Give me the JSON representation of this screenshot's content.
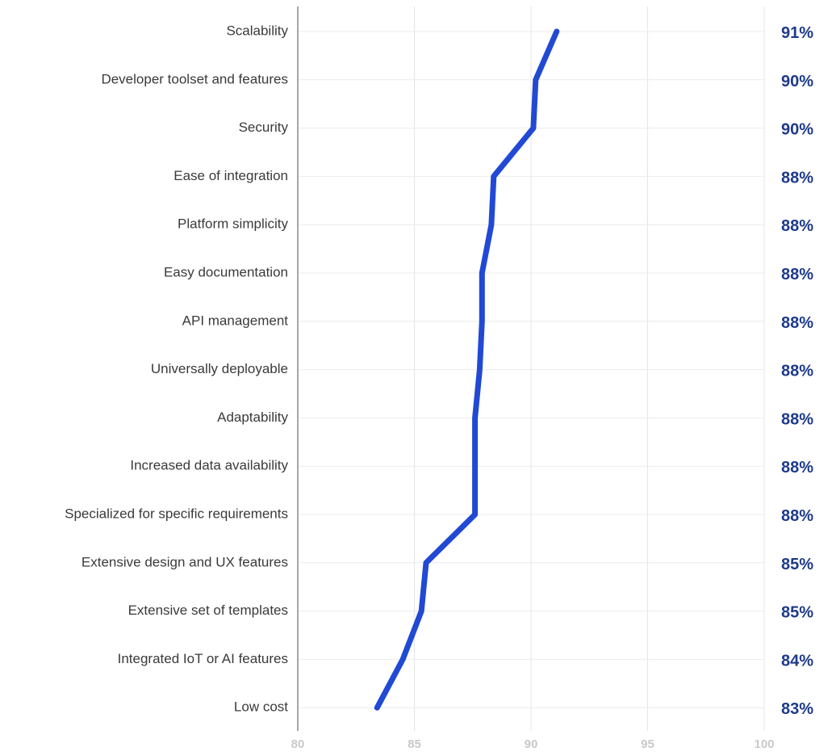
{
  "chart_data": {
    "type": "line",
    "orientation": "horizontal",
    "categories": [
      "Scalability",
      "Developer toolset and features",
      "Security",
      "Ease of integration",
      "Platform simplicity",
      "Easy documentation",
      "API management",
      "Universally deployable",
      "Adaptability",
      "Increased data availability",
      "Specialized for specific requirements",
      "Extensive design and UX features",
      "Extensive set of templates",
      "Integrated IoT or AI features",
      "Low cost"
    ],
    "values": [
      91.1,
      90.2,
      90.1,
      88.4,
      88.3,
      87.9,
      87.9,
      87.8,
      87.6,
      87.6,
      87.6,
      85.5,
      85.3,
      84.5,
      83.4
    ],
    "value_labels": [
      "91%",
      "90%",
      "90%",
      "88%",
      "88%",
      "88%",
      "88%",
      "88%",
      "88%",
      "88%",
      "88%",
      "85%",
      "85%",
      "84%",
      "83%"
    ],
    "x_ticks": [
      "80",
      "85",
      "90",
      "95",
      "100"
    ],
    "xlim": [
      80,
      100
    ],
    "grid": true,
    "line_color": "#2149d3",
    "value_label_color": "#1e3a8a",
    "tick_color": "#c9c9c9"
  }
}
